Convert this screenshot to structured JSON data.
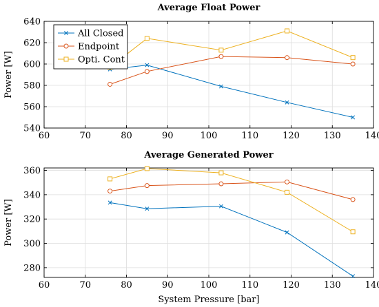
{
  "chart_data": [
    {
      "type": "line",
      "title": "Average Float Power",
      "xlabel": "",
      "ylabel": "Power [W]",
      "xlim": [
        60,
        140
      ],
      "ylim": [
        540,
        640
      ],
      "xticks": [
        60,
        70,
        80,
        90,
        100,
        110,
        120,
        130,
        140
      ],
      "yticks": [
        540,
        560,
        580,
        600,
        620,
        640
      ],
      "grid": true,
      "legend": "top-left",
      "series": [
        {
          "name": "All Closed",
          "color": "#0072bd",
          "marker": "x",
          "x": [
            76,
            85,
            103,
            119,
            135
          ],
          "values": [
            595,
            599,
            579,
            564,
            550
          ]
        },
        {
          "name": "Endpoint",
          "color": "#d95319",
          "marker": "circle",
          "x": [
            76,
            85,
            103,
            119,
            135
          ],
          "values": [
            581,
            593,
            607,
            606,
            600
          ]
        },
        {
          "name": "Opti. Cont",
          "color": "#edb120",
          "marker": "square",
          "x": [
            76,
            85,
            103,
            119,
            135
          ],
          "values": [
            597,
            624,
            613,
            631,
            606
          ]
        }
      ]
    },
    {
      "type": "line",
      "title": "Average Generated Power",
      "xlabel": "System Pressure [bar]",
      "ylabel": "Power [W]",
      "xlim": [
        60,
        140
      ],
      "ylim": [
        272,
        362
      ],
      "xticks": [
        60,
        70,
        80,
        90,
        100,
        110,
        120,
        130,
        140
      ],
      "yticks": [
        280,
        300,
        320,
        340,
        360
      ],
      "grid": true,
      "series": [
        {
          "name": "All Closed",
          "color": "#0072bd",
          "marker": "x",
          "x": [
            76,
            85,
            103,
            119,
            135
          ],
          "values": [
            333.5,
            328.5,
            330.5,
            309,
            273
          ]
        },
        {
          "name": "Endpoint",
          "color": "#d95319",
          "marker": "circle",
          "x": [
            76,
            85,
            103,
            119,
            135
          ],
          "values": [
            343,
            347.5,
            349,
            350.5,
            336
          ]
        },
        {
          "name": "Opti. Cont",
          "color": "#edb120",
          "marker": "square",
          "x": [
            76,
            85,
            103,
            119,
            135
          ],
          "values": [
            353,
            361.5,
            358,
            342,
            309.5
          ]
        }
      ]
    }
  ]
}
